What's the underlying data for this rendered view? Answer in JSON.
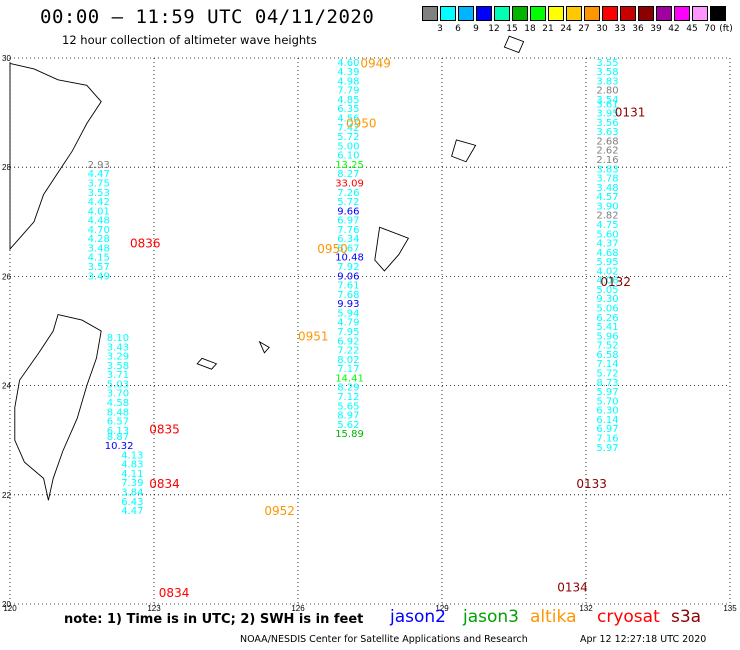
{
  "header": {
    "title": "00:00 – 11:59 UTC 04/11/2020",
    "subtitle": "12 hour collection of altimeter wave heights"
  },
  "colorbar": {
    "unit": "(ft)",
    "cells": [
      "#808080",
      "#00ffff",
      "#00b4ff",
      "#0000ff",
      "#00ffb4",
      "#00b400",
      "#00ff00",
      "#ffff00",
      "#ffc800",
      "#ff9600",
      "#ff0000",
      "#c80000",
      "#8b0000",
      "#a000a0",
      "#ff00ff",
      "#ff96ff",
      "#000000"
    ],
    "ticks": [
      "3",
      "6",
      "9",
      "12",
      "15",
      "18",
      "21",
      "24",
      "27",
      "30",
      "33",
      "36",
      "39",
      "42",
      "45",
      "70"
    ]
  },
  "map": {
    "lon_ticks": [
      "120",
      "123",
      "126",
      "129",
      "132",
      "135"
    ],
    "lat_ticks": [
      "30",
      "28",
      "26",
      "24",
      "22",
      "20"
    ],
    "lon_range": [
      120,
      135
    ],
    "lat_range": [
      20,
      30
    ],
    "grid": "dotted"
  },
  "time_labels": [
    {
      "text": "0949",
      "lon": 127.3,
      "lat": 29.9,
      "color": "#ff9600"
    },
    {
      "text": "0950",
      "lon": 127.0,
      "lat": 28.8,
      "color": "#ff9600"
    },
    {
      "text": "0950",
      "lon": 126.4,
      "lat": 26.5,
      "color": "#ff9600"
    },
    {
      "text": "0951",
      "lon": 126.0,
      "lat": 24.9,
      "color": "#ff9600"
    },
    {
      "text": "0952",
      "lon": 125.3,
      "lat": 21.7,
      "color": "#ff9600"
    },
    {
      "text": "0836",
      "lon": 122.5,
      "lat": 26.6,
      "color": "#ff0000"
    },
    {
      "text": "0835",
      "lon": 122.9,
      "lat": 23.2,
      "color": "#ff0000"
    },
    {
      "text": "0834",
      "lon": 122.9,
      "lat": 22.2,
      "color": "#ff0000"
    },
    {
      "text": "0834",
      "lon": 123.1,
      "lat": 20.2,
      "color": "#ff0000"
    },
    {
      "text": "0131",
      "lon": 132.6,
      "lat": 29.0,
      "color": "#8b0000"
    },
    {
      "text": "0132",
      "lon": 132.3,
      "lat": 25.9,
      "color": "#8b0000"
    },
    {
      "text": "0133",
      "lon": 131.8,
      "lat": 22.2,
      "color": "#8b0000"
    },
    {
      "text": "0134",
      "lon": 131.4,
      "lat": 20.3,
      "color": "#8b0000"
    }
  ],
  "tracks": [
    {
      "name": "cryosat_0834",
      "color": "#ff0000",
      "obs": [
        {
          "v": "2.93",
          "lon": 121.7,
          "lat": 28.06,
          "c": "#808080"
        },
        {
          "v": "4.47",
          "lon": 121.7,
          "lat": 27.89,
          "c": "#00ffff"
        },
        {
          "v": "3.75",
          "lon": 121.7,
          "lat": 27.72,
          "c": "#00ffff"
        },
        {
          "v": "3.53",
          "lon": 121.7,
          "lat": 27.55,
          "c": "#00ffff"
        },
        {
          "v": "4.42",
          "lon": 121.7,
          "lat": 27.38,
          "c": "#00ffff"
        },
        {
          "v": "4.01",
          "lon": 121.7,
          "lat": 27.21,
          "c": "#00ffff"
        },
        {
          "v": "4.48",
          "lon": 121.7,
          "lat": 27.04,
          "c": "#00ffff"
        },
        {
          "v": "4.70",
          "lon": 121.7,
          "lat": 26.87,
          "c": "#00ffff"
        },
        {
          "v": "4.28",
          "lon": 121.7,
          "lat": 26.7,
          "c": "#00ffff"
        },
        {
          "v": "3.48",
          "lon": 121.7,
          "lat": 26.53,
          "c": "#00ffff"
        },
        {
          "v": "4.15",
          "lon": 121.7,
          "lat": 26.36,
          "c": "#00ffff"
        },
        {
          "v": "3.57",
          "lon": 121.7,
          "lat": 26.19,
          "c": "#00ffff"
        },
        {
          "v": "3.49",
          "lon": 121.7,
          "lat": 26.02,
          "c": "#00ffff"
        },
        {
          "v": "8.10",
          "lon": 122.1,
          "lat": 24.89,
          "c": "#00ffff"
        },
        {
          "v": "3.43",
          "lon": 122.1,
          "lat": 24.72,
          "c": "#00ffff"
        },
        {
          "v": "3.29",
          "lon": 122.1,
          "lat": 24.55,
          "c": "#00ffff"
        },
        {
          "v": "3.58",
          "lon": 122.1,
          "lat": 24.38,
          "c": "#00ffff"
        },
        {
          "v": "3.71",
          "lon": 122.1,
          "lat": 24.21,
          "c": "#00ffff"
        },
        {
          "v": "5.03",
          "lon": 122.1,
          "lat": 24.04,
          "c": "#00ffff"
        },
        {
          "v": "3.70",
          "lon": 122.1,
          "lat": 23.87,
          "c": "#00ffff"
        },
        {
          "v": "4.58",
          "lon": 122.1,
          "lat": 23.7,
          "c": "#00ffff"
        },
        {
          "v": "8.48",
          "lon": 122.1,
          "lat": 23.53,
          "c": "#00ffff"
        },
        {
          "v": "6.57",
          "lon": 122.1,
          "lat": 23.36,
          "c": "#00ffff"
        },
        {
          "v": "6.13",
          "lon": 122.1,
          "lat": 23.19,
          "c": "#00ffff"
        },
        {
          "v": "8.87",
          "lon": 122.1,
          "lat": 23.08,
          "c": "#00ffff"
        },
        {
          "v": "10.32",
          "lon": 122.1,
          "lat": 22.91,
          "c": "#0000ff"
        },
        {
          "v": "4.13",
          "lon": 122.4,
          "lat": 22.74,
          "c": "#00ffff"
        },
        {
          "v": "4.83",
          "lon": 122.4,
          "lat": 22.57,
          "c": "#00ffff"
        },
        {
          "v": "4.11",
          "lon": 122.4,
          "lat": 22.4,
          "c": "#00ffff"
        },
        {
          "v": "7.39",
          "lon": 122.4,
          "lat": 22.23,
          "c": "#00ffff"
        },
        {
          "v": "3.84",
          "lon": 122.4,
          "lat": 22.06,
          "c": "#00ffff"
        },
        {
          "v": "6.43",
          "lon": 122.4,
          "lat": 21.89,
          "c": "#00ffff"
        },
        {
          "v": "4.47",
          "lon": 122.4,
          "lat": 21.72,
          "c": "#00ffff"
        }
      ]
    },
    {
      "name": "altika_0950",
      "color": "#ff9600",
      "obs": [
        {
          "v": "4.60",
          "lon": 126.9,
          "lat": 29.93,
          "c": "#00ffff"
        },
        {
          "v": "4.39",
          "lon": 126.9,
          "lat": 29.76,
          "c": "#00ffff"
        },
        {
          "v": "4.98",
          "lon": 126.9,
          "lat": 29.59,
          "c": "#00ffff"
        },
        {
          "v": "7.79",
          "lon": 126.9,
          "lat": 29.42,
          "c": "#00ffff"
        },
        {
          "v": "4.85",
          "lon": 126.9,
          "lat": 29.25,
          "c": "#00ffff"
        },
        {
          "v": "6.35",
          "lon": 126.9,
          "lat": 29.08,
          "c": "#00ffff"
        },
        {
          "v": "4.56",
          "lon": 126.9,
          "lat": 28.91,
          "c": "#00ffff"
        },
        {
          "v": "7.42",
          "lon": 126.9,
          "lat": 28.74,
          "c": "#00ffff"
        },
        {
          "v": "5.72",
          "lon": 126.9,
          "lat": 28.57,
          "c": "#00ffff"
        },
        {
          "v": "5.00",
          "lon": 126.9,
          "lat": 28.4,
          "c": "#00ffff"
        },
        {
          "v": "6.10",
          "lon": 126.9,
          "lat": 28.23,
          "c": "#00ffff"
        },
        {
          "v": "13.25",
          "lon": 126.9,
          "lat": 28.06,
          "c": "#00ff00"
        },
        {
          "v": "8.27",
          "lon": 126.9,
          "lat": 27.89,
          "c": "#00ffff"
        },
        {
          "v": "33.09",
          "lon": 126.9,
          "lat": 27.72,
          "c": "#ff0000"
        },
        {
          "v": "7.26",
          "lon": 126.9,
          "lat": 27.55,
          "c": "#00ffff"
        },
        {
          "v": "5.72",
          "lon": 126.9,
          "lat": 27.38,
          "c": "#00ffff"
        },
        {
          "v": "9.66",
          "lon": 126.9,
          "lat": 27.21,
          "c": "#0000ff"
        },
        {
          "v": "6.97",
          "lon": 126.9,
          "lat": 27.04,
          "c": "#00ffff"
        },
        {
          "v": "7.76",
          "lon": 126.9,
          "lat": 26.87,
          "c": "#00ffff"
        },
        {
          "v": "6.34",
          "lon": 126.9,
          "lat": 26.7,
          "c": "#00ffff"
        },
        {
          "v": "6.67",
          "lon": 126.9,
          "lat": 26.53,
          "c": "#00ffff"
        },
        {
          "v": "10.48",
          "lon": 126.9,
          "lat": 26.36,
          "c": "#0000ff"
        },
        {
          "v": "7.92",
          "lon": 126.9,
          "lat": 26.19,
          "c": "#00ffff"
        },
        {
          "v": "9.06",
          "lon": 126.9,
          "lat": 26.02,
          "c": "#0000ff"
        },
        {
          "v": "7.61",
          "lon": 126.9,
          "lat": 25.85,
          "c": "#00ffff"
        },
        {
          "v": "7.68",
          "lon": 126.9,
          "lat": 25.68,
          "c": "#00ffff"
        },
        {
          "v": "9.93",
          "lon": 126.9,
          "lat": 25.51,
          "c": "#0000ff"
        },
        {
          "v": "5.94",
          "lon": 126.9,
          "lat": 25.34,
          "c": "#00ffff"
        },
        {
          "v": "4.79",
          "lon": 126.9,
          "lat": 25.17,
          "c": "#00ffff"
        },
        {
          "v": "7.95",
          "lon": 126.9,
          "lat": 25.0,
          "c": "#00ffff"
        },
        {
          "v": "6.92",
          "lon": 126.9,
          "lat": 24.83,
          "c": "#00ffff"
        },
        {
          "v": "7.22",
          "lon": 126.9,
          "lat": 24.66,
          "c": "#00ffff"
        },
        {
          "v": "8.02",
          "lon": 126.9,
          "lat": 24.49,
          "c": "#00ffff"
        },
        {
          "v": "7.17",
          "lon": 126.9,
          "lat": 24.32,
          "c": "#00ffff"
        },
        {
          "v": "14.41",
          "lon": 126.9,
          "lat": 24.15,
          "c": "#00ff00"
        },
        {
          "v": "8.29",
          "lon": 126.9,
          "lat": 23.98,
          "c": "#00ffff"
        },
        {
          "v": "7.12",
          "lon": 126.9,
          "lat": 23.81,
          "c": "#00ffff"
        },
        {
          "v": "5.65",
          "lon": 126.9,
          "lat": 23.64,
          "c": "#00ffff"
        },
        {
          "v": "8.97",
          "lon": 126.9,
          "lat": 23.47,
          "c": "#00ffff"
        },
        {
          "v": "5.62",
          "lon": 126.9,
          "lat": 23.3,
          "c": "#00ffff"
        },
        {
          "v": "15.89",
          "lon": 126.9,
          "lat": 23.13,
          "c": "#00b400"
        }
      ]
    },
    {
      "name": "s3a_0131",
      "color": "#8b0000",
      "obs": [
        {
          "v": "3.55",
          "lon": 132.3,
          "lat": 29.93,
          "c": "#00ffff"
        },
        {
          "v": "3.58",
          "lon": 132.3,
          "lat": 29.76,
          "c": "#00ffff"
        },
        {
          "v": "3.83",
          "lon": 132.3,
          "lat": 29.59,
          "c": "#00ffff"
        },
        {
          "v": "2.80",
          "lon": 132.3,
          "lat": 29.42,
          "c": "#808080"
        },
        {
          "v": "3.54",
          "lon": 132.3,
          "lat": 29.25,
          "c": "#00ffff"
        },
        {
          "v": "3.61",
          "lon": 132.3,
          "lat": 29.17,
          "c": "#00ffff"
        },
        {
          "v": "3.95",
          "lon": 132.3,
          "lat": 29.0,
          "c": "#00ffff"
        },
        {
          "v": "3.56",
          "lon": 132.3,
          "lat": 28.83,
          "c": "#00ffff"
        },
        {
          "v": "3.63",
          "lon": 132.3,
          "lat": 28.66,
          "c": "#00ffff"
        },
        {
          "v": "2.68",
          "lon": 132.3,
          "lat": 28.49,
          "c": "#808080"
        },
        {
          "v": "2.62",
          "lon": 132.3,
          "lat": 28.32,
          "c": "#808080"
        },
        {
          "v": "2.16",
          "lon": 132.3,
          "lat": 28.15,
          "c": "#808080"
        },
        {
          "v": "3.83",
          "lon": 132.3,
          "lat": 27.98,
          "c": "#00ffff"
        },
        {
          "v": "3.78",
          "lon": 132.3,
          "lat": 27.81,
          "c": "#00ffff"
        },
        {
          "v": "3.48",
          "lon": 132.3,
          "lat": 27.64,
          "c": "#00ffff"
        },
        {
          "v": "4.57",
          "lon": 132.3,
          "lat": 27.47,
          "c": "#00ffff"
        },
        {
          "v": "3.90",
          "lon": 132.3,
          "lat": 27.3,
          "c": "#00ffff"
        },
        {
          "v": "2.82",
          "lon": 132.3,
          "lat": 27.13,
          "c": "#808080"
        },
        {
          "v": "4.75",
          "lon": 132.3,
          "lat": 26.96,
          "c": "#00ffff"
        },
        {
          "v": "5.60",
          "lon": 132.3,
          "lat": 26.79,
          "c": "#00ffff"
        },
        {
          "v": "4.37",
          "lon": 132.3,
          "lat": 26.62,
          "c": "#00ffff"
        },
        {
          "v": "4.68",
          "lon": 132.3,
          "lat": 26.45,
          "c": "#00ffff"
        },
        {
          "v": "5.95",
          "lon": 132.3,
          "lat": 26.28,
          "c": "#00ffff"
        },
        {
          "v": "4.02",
          "lon": 132.3,
          "lat": 26.11,
          "c": "#00ffff"
        },
        {
          "v": "4.06",
          "lon": 132.3,
          "lat": 25.94,
          "c": "#00ffff"
        },
        {
          "v": "5.05",
          "lon": 132.3,
          "lat": 25.77,
          "c": "#00ffff"
        },
        {
          "v": "9.30",
          "lon": 132.3,
          "lat": 25.6,
          "c": "#00ffff"
        },
        {
          "v": "5.06",
          "lon": 132.3,
          "lat": 25.43,
          "c": "#00ffff"
        },
        {
          "v": "6.26",
          "lon": 132.3,
          "lat": 25.26,
          "c": "#00ffff"
        },
        {
          "v": "5.41",
          "lon": 132.3,
          "lat": 25.09,
          "c": "#00ffff"
        },
        {
          "v": "5.96",
          "lon": 132.3,
          "lat": 24.92,
          "c": "#00ffff"
        },
        {
          "v": "7.52",
          "lon": 132.3,
          "lat": 24.75,
          "c": "#00ffff"
        },
        {
          "v": "6.58",
          "lon": 132.3,
          "lat": 24.58,
          "c": "#00ffff"
        },
        {
          "v": "7.14",
          "lon": 132.3,
          "lat": 24.41,
          "c": "#00ffff"
        },
        {
          "v": "5.72",
          "lon": 132.3,
          "lat": 24.24,
          "c": "#00ffff"
        },
        {
          "v": "8.73",
          "lon": 132.3,
          "lat": 24.07,
          "c": "#00ffff"
        },
        {
          "v": "5.97",
          "lon": 132.3,
          "lat": 23.9,
          "c": "#00ffff"
        },
        {
          "v": "5.70",
          "lon": 132.3,
          "lat": 23.73,
          "c": "#00ffff"
        },
        {
          "v": "6.30",
          "lon": 132.3,
          "lat": 23.56,
          "c": "#00ffff"
        },
        {
          "v": "6.14",
          "lon": 132.3,
          "lat": 23.39,
          "c": "#00ffff"
        },
        {
          "v": "6.97",
          "lon": 132.3,
          "lat": 23.22,
          "c": "#00ffff"
        },
        {
          "v": "7.16",
          "lon": 132.3,
          "lat": 23.05,
          "c": "#00ffff"
        },
        {
          "v": "5.97",
          "lon": 132.3,
          "lat": 22.88,
          "c": "#00ffff"
        }
      ]
    }
  ],
  "footer": {
    "note": "note: 1) Time is in UTC; 2) SWH is in feet",
    "legend": [
      {
        "label": "jason2",
        "color": "#0000ff"
      },
      {
        "label": "jason3",
        "color": "#00a000"
      },
      {
        "label": "altika",
        "color": "#ff9600"
      },
      {
        "label": "cryosat",
        "color": "#ff0000"
      },
      {
        "label": "s3a",
        "color": "#8b0000"
      }
    ],
    "credit": "NOAA/NESDIS Center for Satellite Applications and Research",
    "timestamp": "Apr 12 12:27:18 UTC 2020"
  }
}
